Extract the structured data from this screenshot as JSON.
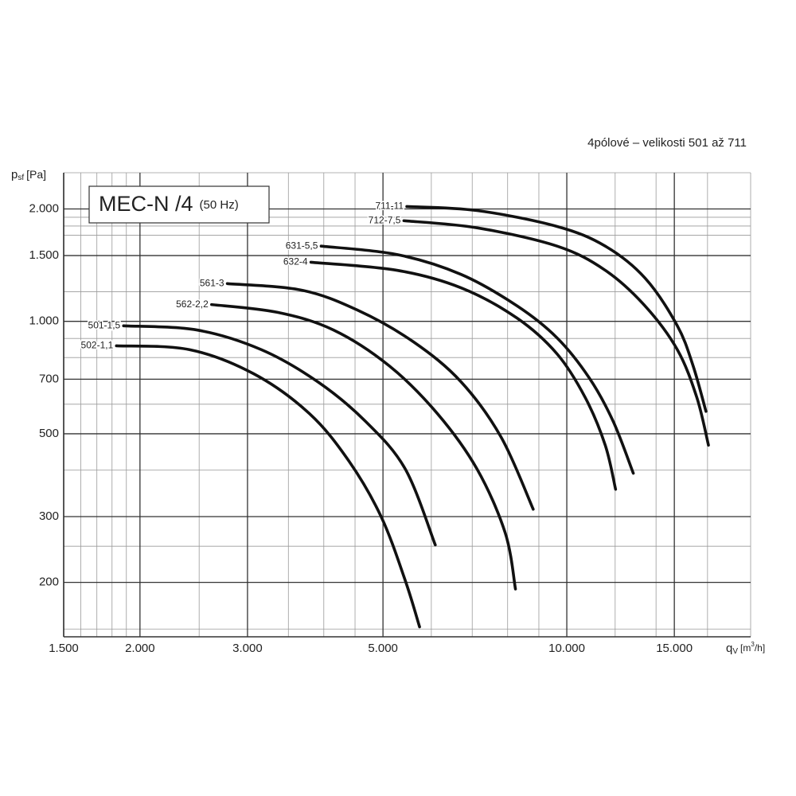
{
  "chart_data": {
    "type": "line",
    "subtitle": "4pólové – velikosti 501 až 711",
    "title": {
      "main": "MEC-N /4",
      "note": "(50 Hz)"
    },
    "y_label": {
      "symbol": "p",
      "sub": "sf",
      "unit": "[Pa]"
    },
    "x_label": {
      "symbol": "q",
      "sub": "V",
      "unit_pre": "[m",
      "sup": "3",
      "unit_post": "/h]"
    },
    "log_x": true,
    "log_y": true,
    "grid": true,
    "color": "#111111",
    "xlim": [
      1500,
      20000
    ],
    "ylim": [
      143,
      2500
    ],
    "xticks": [
      {
        "value": 1500,
        "label": "1.500"
      },
      {
        "value": 2000,
        "label": "2.000"
      },
      {
        "value": 3000,
        "label": "3.000"
      },
      {
        "value": 5000,
        "label": "5.000"
      },
      {
        "value": 10000,
        "label": "10.000"
      },
      {
        "value": 15000,
        "label": "15.000"
      }
    ],
    "yticks": [
      200,
      300,
      500,
      700,
      {
        "value": 1000,
        "label": "1.000"
      },
      {
        "value": 1500,
        "label": "1.500"
      },
      {
        "value": 2000,
        "label": "2.000"
      }
    ],
    "x_minor_grid": [
      1600,
      1700,
      1800,
      1900,
      2500,
      3500,
      4000,
      4500,
      6000,
      7000,
      8000,
      9000,
      12000,
      14000,
      17000,
      20000
    ],
    "y_minor_grid": [
      150,
      250,
      400,
      600,
      800,
      900,
      1200,
      1700,
      1800,
      1900,
      2500
    ],
    "series": [
      {
        "name": "711-11",
        "x": [
          5470,
          7130,
          9640,
          11560,
          13430,
          15170,
          16100,
          16900
        ],
        "values": [
          2030,
          1980,
          1795,
          1590,
          1306,
          973,
          760,
          574
        ]
      },
      {
        "name": "712-7,5",
        "x": [
          5410,
          7130,
          9640,
          11560,
          13430,
          15170,
          16330,
          17060
        ],
        "values": [
          1860,
          1780,
          1590,
          1370,
          1100,
          840,
          625,
          466
        ]
      },
      {
        "name": "631-5,5",
        "x": [
          3960,
          5270,
          6710,
          8290,
          9640,
          10880,
          11910,
          12850
        ],
        "values": [
          1590,
          1510,
          1336,
          1100,
          903,
          706,
          540,
          392
        ]
      },
      {
        "name": "632-4",
        "x": [
          3810,
          5270,
          6710,
          8290,
          9640,
          10720,
          11560,
          12020
        ],
        "values": [
          1440,
          1370,
          1230,
          1020,
          818,
          625,
          466,
          355
        ]
      },
      {
        "name": "561-3",
        "x": [
          2780,
          3670,
          4540,
          5610,
          6710,
          7810,
          8810
        ],
        "values": [
          1262,
          1213,
          1072,
          881,
          689,
          489,
          314
        ]
      },
      {
        "name": "562-2,2",
        "x": [
          2620,
          3360,
          4150,
          5120,
          6140,
          7130,
          7930,
          8240
        ],
        "values": [
          1109,
          1057,
          948,
          760,
          566,
          402,
          271,
          192
        ]
      },
      {
        "name": "501-1,5",
        "x": [
          1880,
          2480,
          3160,
          3910,
          4680,
          5440,
          6090
        ],
        "values": [
          973,
          948,
          840,
          689,
          540,
          402,
          252
        ]
      },
      {
        "name": "502-1,1",
        "x": [
          1830,
          2410,
          3070,
          3790,
          4400,
          4970,
          5440,
          5740
        ],
        "values": [
          860,
          840,
          724,
          566,
          422,
          299,
          202,
          152
        ]
      }
    ]
  }
}
